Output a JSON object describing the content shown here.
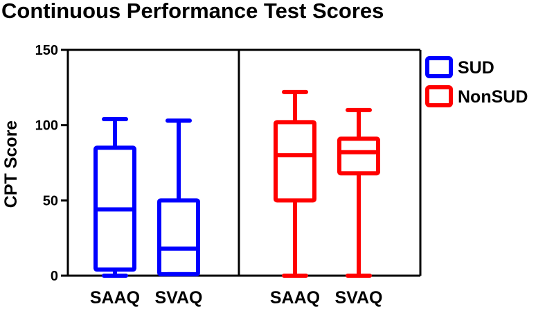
{
  "chart_data": {
    "type": "box",
    "title": "Continuous Performance Test Scores",
    "xlabel": "",
    "ylabel": "CPT Score",
    "ylim": [
      0,
      150
    ],
    "yticks": [
      0,
      50,
      100,
      150
    ],
    "grid": false,
    "legend_position": "right",
    "series": [
      {
        "name": "SUD",
        "color": "#0000ff",
        "boxes": [
          {
            "category": "SAAQ",
            "min": 0,
            "q1": 4,
            "median": 44,
            "q3": 85,
            "max": 104
          },
          {
            "category": "SVAQ",
            "min": 1,
            "q1": 1,
            "median": 18,
            "q3": 50,
            "max": 103
          }
        ]
      },
      {
        "name": "NonSUD",
        "color": "#ff0000",
        "boxes": [
          {
            "category": "SAAQ",
            "min": 0,
            "q1": 50,
            "median": 80,
            "q3": 102,
            "max": 122
          },
          {
            "category": "SVAQ",
            "min": 0,
            "q1": 68,
            "median": 82,
            "q3": 91,
            "max": 110
          }
        ]
      }
    ]
  }
}
